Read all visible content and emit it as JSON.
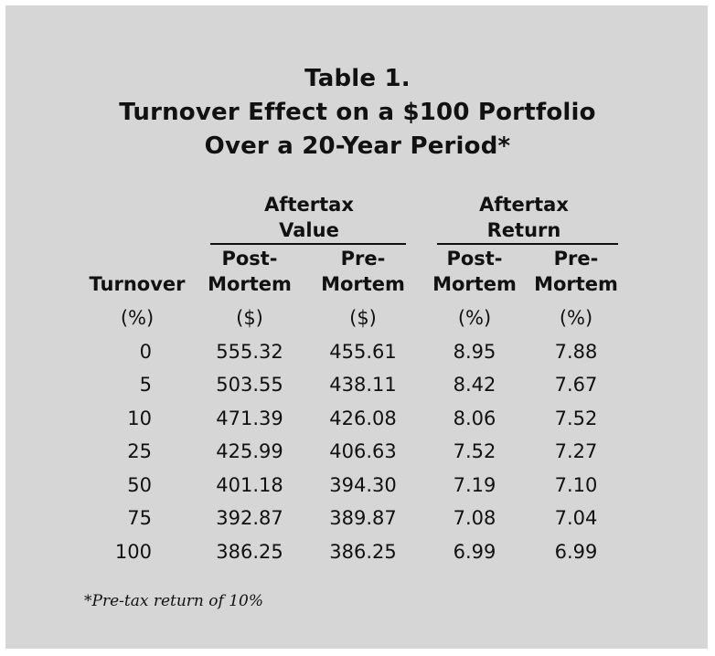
{
  "title": {
    "line1": "Table 1.",
    "line2": "Turnover Effect on a $100 Portfolio",
    "line3": "Over a 20-Year Period*"
  },
  "headers": {
    "group_value": {
      "line1": "Aftertax",
      "line2": "Value"
    },
    "group_return": {
      "line1": "Aftertax",
      "line2": "Return"
    },
    "turnover": "Turnover",
    "value_post": {
      "line1": "Post-",
      "line2": "Mortem"
    },
    "value_pre": {
      "line1": "Pre-",
      "line2": "Mortem"
    },
    "return_post": {
      "line1": "Post-",
      "line2": "Mortem"
    },
    "return_pre": {
      "line1": "Pre-",
      "line2": "Mortem"
    }
  },
  "units": [
    "(%)",
    "($)",
    "($)",
    "(%)",
    "(%)"
  ],
  "rows": [
    [
      "0",
      "555.32",
      "455.61",
      "8.95",
      "7.88"
    ],
    [
      "5",
      "503.55",
      "438.11",
      "8.42",
      "7.67"
    ],
    [
      "10",
      "471.39",
      "426.08",
      "8.06",
      "7.52"
    ],
    [
      "25",
      "425.99",
      "406.63",
      "7.52",
      "7.27"
    ],
    [
      "50",
      "401.18",
      "394.30",
      "7.19",
      "7.10"
    ],
    [
      "75",
      "392.87",
      "389.87",
      "7.08",
      "7.04"
    ],
    [
      "100",
      "386.25",
      "386.25",
      "6.99",
      "6.99"
    ]
  ],
  "footnote": "*Pre-tax return of 10%"
}
